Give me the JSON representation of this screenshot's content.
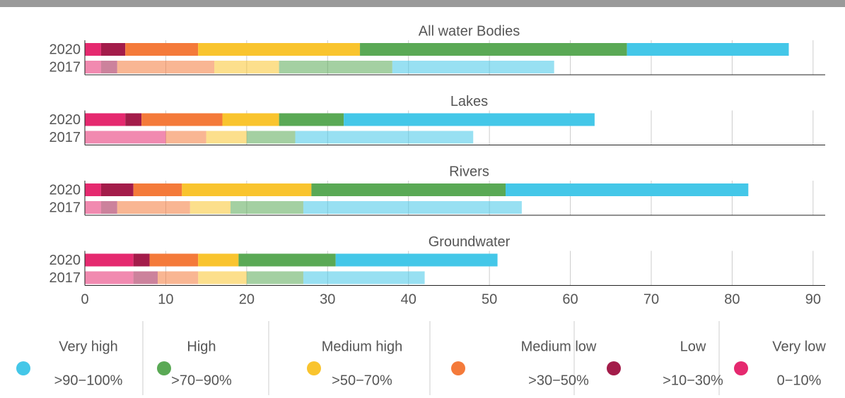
{
  "chart_data": {
    "type": "stacked-bar",
    "categories": [
      "2020",
      "2017"
    ],
    "xlim": [
      0,
      91.5
    ],
    "xticks": [
      0,
      10,
      20,
      30,
      40,
      50,
      60,
      70,
      80,
      90
    ],
    "grid": true,
    "legend": [
      {
        "name": "Very low",
        "range": "0−10%",
        "color": "#e5296f"
      },
      {
        "name": "Low",
        "range": ">10−30%",
        "color": "#a31c4a"
      },
      {
        "name": "Medium low",
        "range": ">30−50%",
        "color": "#f47a3a"
      },
      {
        "name": "Medium high",
        "range": ">50−70%",
        "color": "#f9c42e"
      },
      {
        "name": "High",
        "range": ">70−90%",
        "color": "#5aa955"
      },
      {
        "name": "Very high",
        "range": ">90−100%",
        "color": "#44c7e8"
      }
    ],
    "panels": [
      {
        "title": "All water Bodies",
        "values": [
          [
            2,
            3,
            9,
            20,
            33,
            20
          ],
          [
            2,
            2,
            12,
            8,
            14,
            20
          ]
        ]
      },
      {
        "title": "Lakes",
        "values": [
          [
            5,
            2,
            10,
            7,
            8,
            31
          ],
          [
            10,
            0,
            5,
            5,
            6,
            22
          ]
        ]
      },
      {
        "title": "Rivers",
        "values": [
          [
            2,
            4,
            6,
            16,
            24,
            30
          ],
          [
            2,
            2,
            9,
            5,
            9,
            27
          ]
        ]
      },
      {
        "title": "Groundwater",
        "values": [
          [
            6,
            2,
            6,
            5,
            12,
            20
          ],
          [
            6,
            3,
            5,
            6,
            7,
            15
          ]
        ]
      }
    ]
  }
}
